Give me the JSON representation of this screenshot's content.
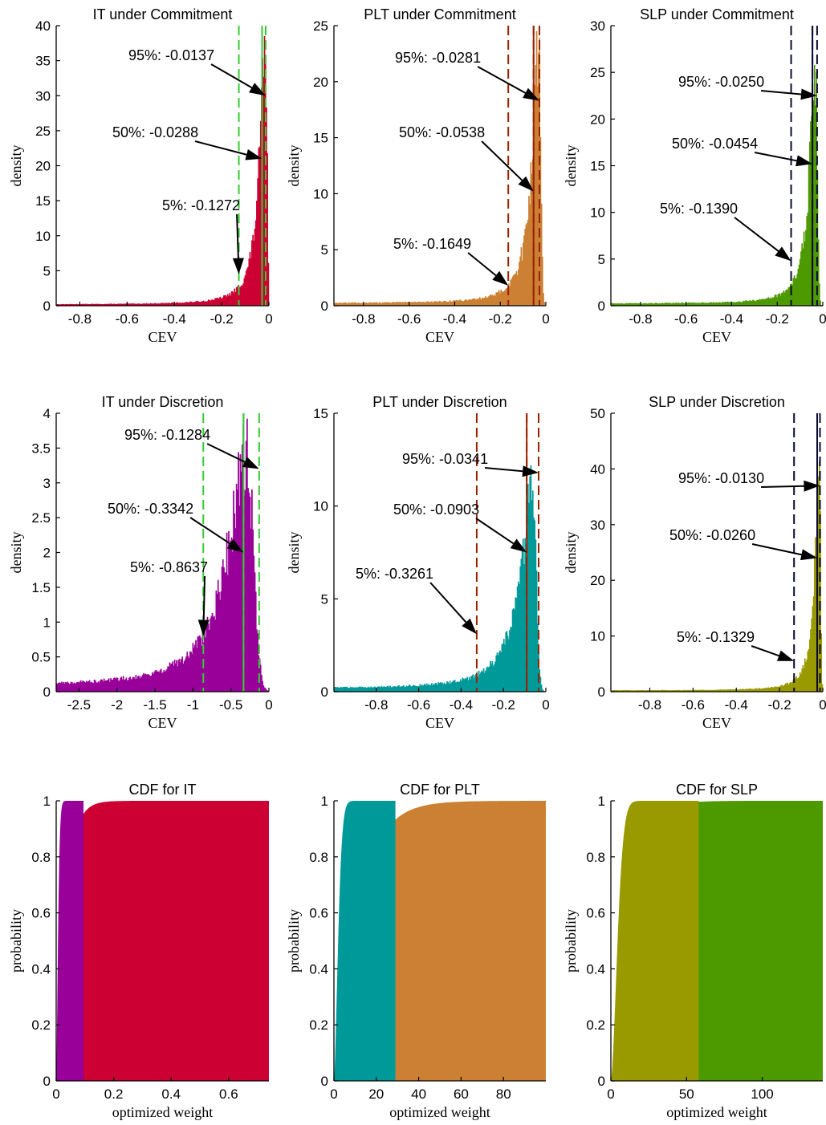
{
  "figure": {
    "colors": {
      "IT": "#cc0033",
      "PLT": "#cc8033",
      "SLP": "#4d9900",
      "IT_disc": "#990099",
      "PLT_disc": "#009999",
      "SLP_disc": "#999900",
      "IT_line": "#33cc33",
      "PLT_line": "#992200",
      "SLP_line": "#0a0a33"
    }
  },
  "chart_data": [
    {
      "type": "histogram",
      "title": "IT under Commitment",
      "xlabel": "CEV",
      "ylabel": "density",
      "xlim": [
        -0.9,
        0
      ],
      "ylim": [
        0,
        40
      ],
      "xticks": [
        -0.8,
        -0.6,
        -0.4,
        -0.2,
        0
      ],
      "xticklabels": [
        "-0.8",
        "-0.6",
        "-0.4",
        "-0.2",
        "0"
      ],
      "yticks": [
        0,
        5,
        10,
        15,
        20,
        25,
        30,
        35,
        40
      ],
      "yticklabels": [
        "0",
        "5",
        "10",
        "15",
        "20",
        "25",
        "30",
        "35",
        "40"
      ],
      "fill": "#cc0033",
      "line_color": "#33cc33",
      "vline_solid": -0.0288,
      "dist": {
        "mode": -0.013,
        "peak": 36,
        "left_scale": 0.03,
        "right_scale": 0.006,
        "floor": 0.15
      },
      "annotations": [
        {
          "text": "95%: -0.0137",
          "value": -0.0137,
          "tip_y": 30
        },
        {
          "text": "50%: -0.0288",
          "value": -0.0288,
          "tip_y": 21
        },
        {
          "text": "5%: -0.1272",
          "value": -0.1272,
          "tip_y": 4.5
        }
      ]
    },
    {
      "type": "histogram",
      "title": "PLT under Commitment",
      "xlabel": "CEV",
      "ylabel": "density",
      "xlim": [
        -0.93,
        0
      ],
      "ylim": [
        0,
        25
      ],
      "xticks": [
        -0.8,
        -0.6,
        -0.4,
        -0.2,
        0
      ],
      "xticklabels": [
        "-0.8",
        "-0.6",
        "-0.4",
        "-0.2",
        "0"
      ],
      "yticks": [
        0,
        5,
        10,
        15,
        20,
        25
      ],
      "yticklabels": [
        "0",
        "5",
        "10",
        "15",
        "20",
        "25"
      ],
      "fill": "#cc8033",
      "line_color": "#992200",
      "vline_solid": -0.0538,
      "dist": {
        "mode": -0.03,
        "peak": 23,
        "left_scale": 0.035,
        "right_scale": 0.008,
        "floor": 0.2
      },
      "annotations": [
        {
          "text": "95%: -0.0281",
          "value": -0.0281,
          "tip_y": 18.3
        },
        {
          "text": "50%: -0.0538",
          "value": -0.0538,
          "tip_y": 10.2
        },
        {
          "text": "5%: -0.1649",
          "value": -0.1649,
          "tip_y": 1.8
        }
      ]
    },
    {
      "type": "histogram",
      "title": "SLP under Commitment",
      "xlabel": "CEV",
      "ylabel": "density",
      "xlim": [
        -0.93,
        0
      ],
      "ylim": [
        0,
        30
      ],
      "xticks": [
        -0.8,
        -0.6,
        -0.4,
        -0.2,
        0
      ],
      "xticklabels": [
        "-0.8",
        "-0.6",
        "-0.4",
        "-0.2",
        "0"
      ],
      "yticks": [
        0,
        5,
        10,
        15,
        20,
        25,
        30
      ],
      "yticklabels": [
        "0",
        "5",
        "10",
        "15",
        "20",
        "25",
        "30"
      ],
      "fill": "#4d9900",
      "line_color": "#0a0a33",
      "vline_solid": -0.0454,
      "dist": {
        "mode": -0.03,
        "peak": 26,
        "left_scale": 0.03,
        "right_scale": 0.007,
        "floor": 0.2
      },
      "annotations": [
        {
          "text": "95%: -0.0250",
          "value": -0.025,
          "tip_y": 22.5
        },
        {
          "text": "50%: -0.0454",
          "value": -0.0454,
          "tip_y": 15.2
        },
        {
          "text": "5%: -0.1390",
          "value": -0.139,
          "tip_y": 4.8
        }
      ]
    },
    {
      "type": "histogram",
      "title": "IT under Discretion",
      "xlabel": "CEV",
      "ylabel": "density",
      "xlim": [
        -2.8,
        0
      ],
      "ylim": [
        0,
        4
      ],
      "xticks": [
        -2.5,
        -2,
        -1.5,
        -1,
        -0.5,
        0
      ],
      "xticklabels": [
        "-2.5",
        "-2",
        "-1.5",
        "-1",
        "-0.5",
        "0"
      ],
      "yticks": [
        0,
        0.5,
        1,
        1.5,
        2,
        2.5,
        3,
        3.5,
        4
      ],
      "yticklabels": [
        "0",
        "0.5",
        "1",
        "1.5",
        "2",
        "2.5",
        "3",
        "3.5",
        "4"
      ],
      "fill": "#990099",
      "line_color": "#33cc33",
      "vline_solid": -0.3342,
      "dist": {
        "mode": -0.28,
        "peak": 3.3,
        "left_scale": 0.3,
        "right_scale": 0.08,
        "floor": 0.07
      },
      "annotations": [
        {
          "text": "95%: -0.1284",
          "value": -0.1284,
          "tip_y": 3.2
        },
        {
          "text": "50%: -0.3342",
          "value": -0.3342,
          "tip_y": 2.0
        },
        {
          "text": "5%: -0.8637",
          "value": -0.8637,
          "tip_y": 0.8
        }
      ]
    },
    {
      "type": "histogram",
      "title": "PLT under Discretion",
      "xlabel": "CEV",
      "ylabel": "density",
      "xlim": [
        -1.0,
        0
      ],
      "ylim": [
        0,
        15
      ],
      "xticks": [
        -0.8,
        -0.6,
        -0.4,
        -0.2,
        0
      ],
      "xticklabels": [
        "-0.8",
        "-0.6",
        "-0.4",
        "-0.2",
        "0"
      ],
      "yticks": [
        0,
        5,
        10,
        15
      ],
      "yticklabels": [
        "0",
        "5",
        "10",
        "15"
      ],
      "fill": "#009999",
      "line_color": "#992200",
      "vline_solid": -0.0903,
      "dist": {
        "mode": -0.06,
        "peak": 10.5,
        "left_scale": 0.07,
        "right_scale": 0.015,
        "floor": 0.15
      },
      "annotations": [
        {
          "text": "95%: -0.0341",
          "value": -0.0341,
          "tip_y": 11.8
        },
        {
          "text": "50%: -0.0903",
          "value": -0.0903,
          "tip_y": 7.5
        },
        {
          "text": "5%: -0.3261",
          "value": -0.3261,
          "tip_y": 3.1
        }
      ]
    },
    {
      "type": "histogram",
      "title": "SLP under Discretion",
      "xlabel": "CEV",
      "ylabel": "density",
      "xlim": [
        -0.98,
        0
      ],
      "ylim": [
        0,
        50
      ],
      "xticks": [
        -0.8,
        -0.6,
        -0.4,
        -0.2,
        0
      ],
      "xticklabels": [
        "-0.8",
        "-0.6",
        "-0.4",
        "-0.2",
        "0"
      ],
      "yticks": [
        0,
        10,
        20,
        30,
        40,
        50
      ],
      "yticklabels": [
        "0",
        "10",
        "20",
        "30",
        "40",
        "50"
      ],
      "fill": "#999900",
      "line_color": "#0a0a33",
      "vline_solid": -0.026,
      "dist": {
        "mode": -0.015,
        "peak": 38,
        "left_scale": 0.025,
        "right_scale": 0.005,
        "floor": 0.2
      },
      "annotations": [
        {
          "text": "95%: -0.0130",
          "value": -0.013,
          "tip_y": 37
        },
        {
          "text": "50%: -0.0260",
          "value": -0.026,
          "tip_y": 24
        },
        {
          "text": "5%: -0.1329",
          "value": -0.1329,
          "tip_y": 5.5
        }
      ]
    },
    {
      "type": "area",
      "title": "CDF for IT",
      "xlabel": "optimized weight",
      "ylabel": "probability",
      "xlim": [
        0,
        0.74
      ],
      "ylim": [
        0,
        1
      ],
      "xticks": [
        0,
        0.2,
        0.4,
        0.6
      ],
      "xticklabels": [
        "0",
        "0.2",
        "0.4",
        "0.6"
      ],
      "yticks": [
        0,
        0.2,
        0.4,
        0.6,
        0.8,
        1
      ],
      "yticklabels": [
        "0",
        "0.2",
        "0.4",
        "0.6",
        "0.8",
        "1"
      ],
      "series": [
        {
          "name": "",
          "color": "#cc0033",
          "x_start": 0.003,
          "x_end": 0.74,
          "scale": 0.03,
          "shape": 1.0
        },
        {
          "name": "",
          "color": "#990099",
          "x_start": 0.0,
          "x_end": 0.095,
          "scale": 0.008,
          "shape": 1.5
        }
      ]
    },
    {
      "type": "area",
      "title": "CDF for PLT",
      "xlabel": "optimized weight",
      "ylabel": "probability",
      "xlim": [
        0,
        100
      ],
      "ylim": [
        0,
        1
      ],
      "xticks": [
        0,
        20,
        40,
        60,
        80
      ],
      "xticklabels": [
        "0",
        "20",
        "40",
        "60",
        "80"
      ],
      "yticks": [
        0,
        0.2,
        0.4,
        0.6,
        0.8,
        1
      ],
      "yticklabels": [
        "0",
        "0.2",
        "0.4",
        "0.6",
        "0.8",
        "1"
      ],
      "series": [
        {
          "name": "",
          "color": "#cc8033",
          "x_start": 2.0,
          "x_end": 100,
          "scale": 10,
          "shape": 1.0
        },
        {
          "name": "",
          "color": "#009999",
          "x_start": 0.0,
          "x_end": 29,
          "scale": 2.5,
          "shape": 1.6
        }
      ]
    },
    {
      "type": "area",
      "title": "CDF for SLP",
      "xlabel": "optimized weight",
      "ylabel": "probability",
      "xlim": [
        0,
        140
      ],
      "ylim": [
        0,
        1
      ],
      "xticks": [
        0,
        50,
        100
      ],
      "xticklabels": [
        "0",
        "50",
        "100"
      ],
      "yticks": [
        0,
        0.2,
        0.4,
        0.6,
        0.8,
        1
      ],
      "yticklabels": [
        "0",
        "0.2",
        "0.4",
        "0.6",
        "0.8",
        "1"
      ],
      "series": [
        {
          "name": "",
          "color": "#4d9900",
          "x_start": 2.0,
          "x_end": 140,
          "scale": 10,
          "shape": 1.0
        },
        {
          "name": "",
          "color": "#999900",
          "x_start": 0.0,
          "x_end": 58,
          "scale": 5.5,
          "shape": 1.7
        }
      ]
    }
  ]
}
